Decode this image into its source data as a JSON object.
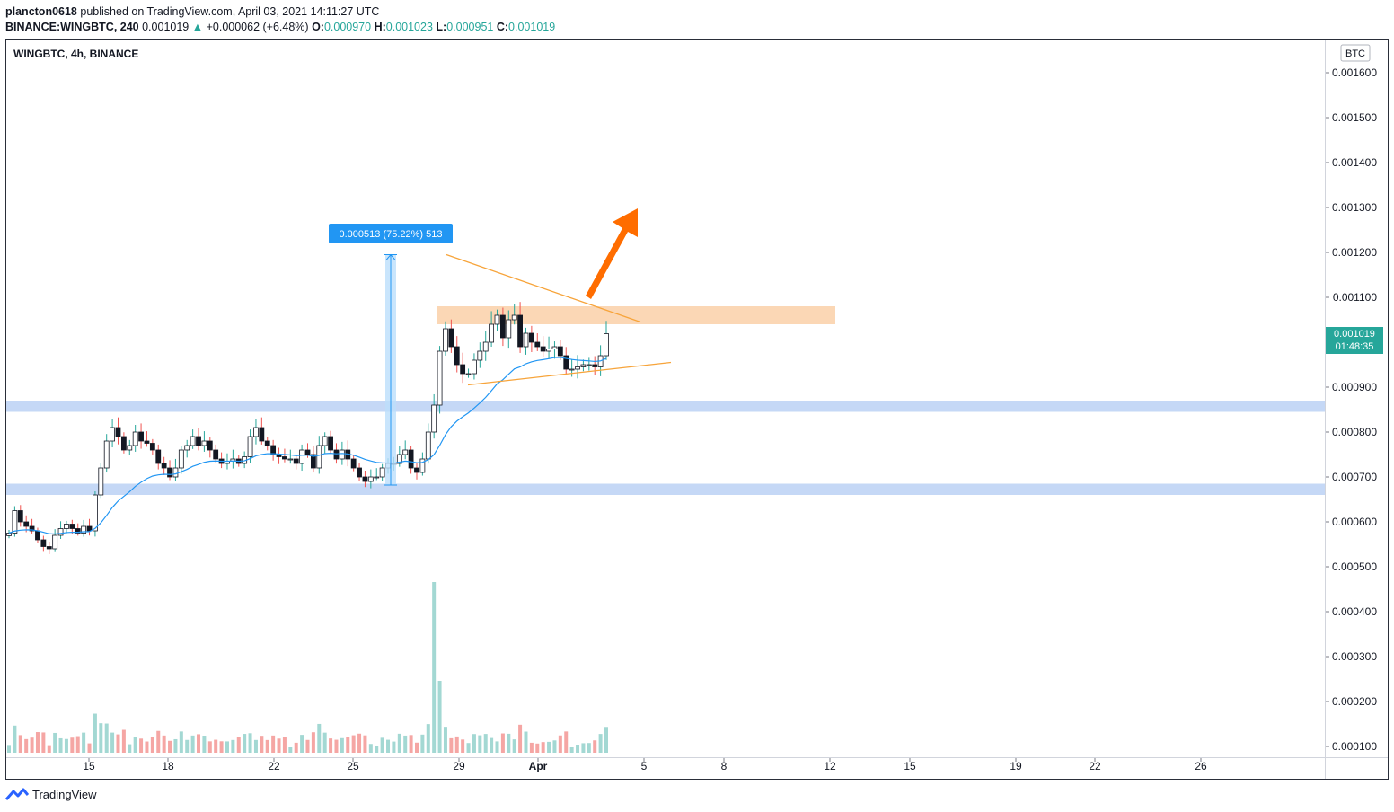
{
  "header": {
    "author": "plancton0618",
    "published_text": "published on TradingView.com, April 03, 2021 14:11:27 UTC",
    "symbol_line": "BINANCE:WINGBTC, 240",
    "last": "0.001019",
    "arrow": "▲",
    "change": "+0.000062 (+6.48%)",
    "o_label": "O:",
    "o_val": "0.000970",
    "h_label": "H:",
    "h_val": "0.001023",
    "l_label": "L:",
    "l_val": "0.000951",
    "c_label": "C:",
    "c_val": "0.001019"
  },
  "chart_title": "WINGBTC, 4h, BINANCE",
  "currency_badge": "BTC",
  "price_tag": {
    "price": "0.001019",
    "countdown": "01:48:35"
  },
  "measure_label": "0.000513 (75.22%) 513",
  "footer": {
    "brand": "TradingView"
  },
  "colors": {
    "up": "#26a69a",
    "down": "#ef5350",
    "ema": "#2196f3",
    "support_band": "#c5d8f6",
    "resistance_band": "#fbd7b5",
    "triangle": "#f7a43a",
    "arrow": "#ff6d00",
    "measure": "#2196f3"
  },
  "chart_data": {
    "type": "candlestick",
    "symbol": "WINGBTC",
    "interval": "4h",
    "exchange": "BINANCE",
    "y_axis_ticks": [
      "0.001600",
      "0.001500",
      "0.001400",
      "0.001300",
      "0.001200",
      "0.001100",
      "0.001000",
      "0.000900",
      "0.000800",
      "0.000700",
      "0.000600",
      "0.000500",
      "0.000400",
      "0.000300",
      "0.000200",
      "0.000100"
    ],
    "y_range": [
      8e-05,
      0.00166
    ],
    "x_axis_ticks": [
      "15",
      "18",
      "22",
      "25",
      "29",
      "Apr",
      "5",
      "8",
      "12",
      "15",
      "19",
      "22",
      "26"
    ],
    "support_zones": [
      [
        0.000845,
        0.00087
      ],
      [
        0.00066,
        0.000685
      ]
    ],
    "resistance_zone": [
      0.00104,
      0.00108
    ],
    "triangle_upper": [
      [
        0.001195
      ],
      [
        0.001045
      ]
    ],
    "triangle_lower": [
      [
        0.000905
      ],
      [
        0.000955
      ]
    ],
    "measure": {
      "from": 0.000682,
      "to": 0.001195,
      "delta": "0.000513",
      "percent": "75.22%"
    },
    "last_close": 0.001019,
    "closes": [
      0.000575,
      0.000625,
      0.0006,
      0.00059,
      0.00058,
      0.00056,
      0.000545,
      0.00054,
      0.00057,
      0.000585,
      0.000595,
      0.000585,
      0.000575,
      0.00059,
      0.00058,
      0.00066,
      0.00072,
      0.00078,
      0.00081,
      0.00079,
      0.00076,
      0.00077,
      0.0008,
      0.00078,
      0.000775,
      0.00076,
      0.00073,
      0.00072,
      0.0007,
      0.00072,
      0.00076,
      0.00077,
      0.00079,
      0.00077,
      0.00078,
      0.00076,
      0.00074,
      0.00073,
      0.000735,
      0.00074,
      0.00073,
      0.000745,
      0.00079,
      0.00081,
      0.00078,
      0.00077,
      0.00075,
      0.000745,
      0.00074,
      0.00074,
      0.00073,
      0.00076,
      0.00075,
      0.00072,
      0.00077,
      0.00079,
      0.00076,
      0.00074,
      0.00076,
      0.00074,
      0.00072,
      0.0007,
      0.00069,
      0.0007,
      0.0007,
      0.00072,
      0.00073,
      0.00073,
      0.00075,
      0.00076,
      0.00072,
      0.00071,
      0.00074,
      0.0008,
      0.00086,
      0.00098,
      0.00103,
      0.00099,
      0.00095,
      0.00093,
      0.00093,
      0.00096,
      0.00098,
      0.001,
      0.00104,
      0.00106,
      0.00101,
      0.00105,
      0.00106,
      0.00099,
      0.00102,
      0.001,
      0.00099,
      0.00098,
      0.000985,
      0.00099,
      0.00097,
      0.00094,
      0.00094,
      0.000945,
      0.00095,
      0.00095,
      0.000945,
      0.00097,
      0.001019
    ],
    "volume_max_label": "0.000500"
  }
}
